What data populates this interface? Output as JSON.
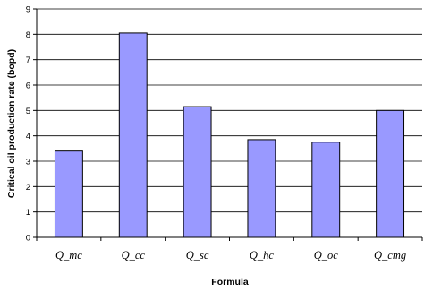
{
  "chart_data": {
    "type": "bar",
    "title": "",
    "xlabel": "Formula",
    "ylabel": "Critical oil production rate (bopd)",
    "categories": [
      "Q_mc",
      "Q_cc",
      "Q_sc",
      "Q_hc",
      "Q_oc",
      "Q_cmg"
    ],
    "values": [
      3.4,
      8.05,
      5.15,
      3.85,
      3.75,
      5.0
    ],
    "ylim": [
      0,
      9
    ],
    "yticks": [
      0,
      1,
      2,
      3,
      4,
      5,
      6,
      7,
      8,
      9
    ],
    "grid": true,
    "legend": "none",
    "colors": {
      "bar_fill": "#9999ff",
      "bar_stroke": "#000000",
      "grid": "#000000",
      "axis": "#000000"
    }
  }
}
